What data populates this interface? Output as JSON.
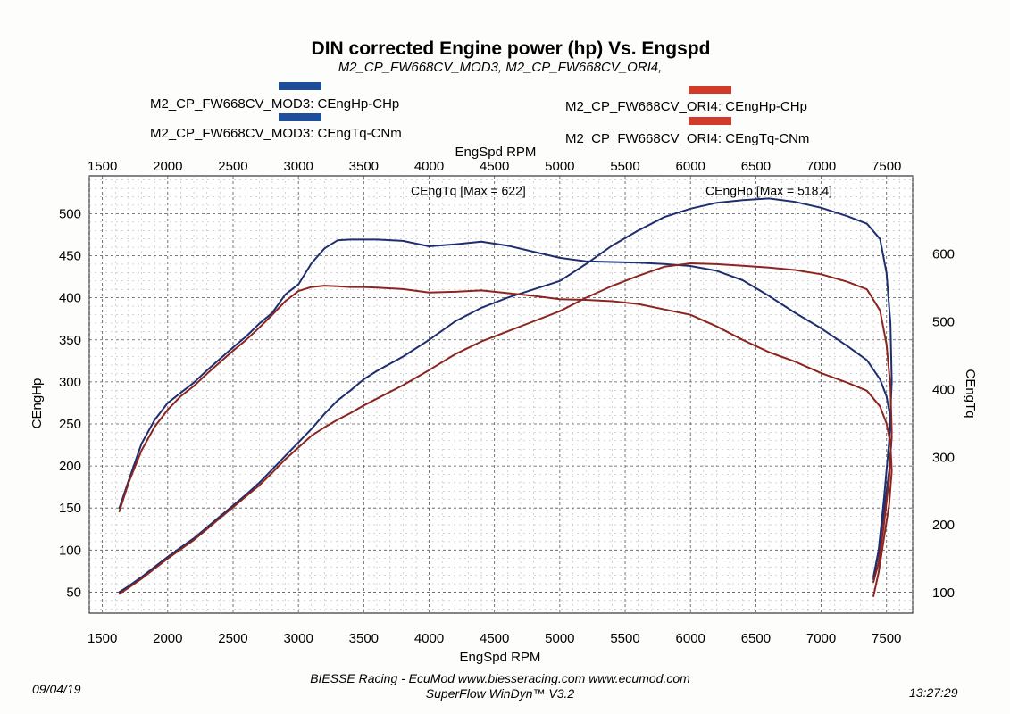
{
  "chart_data": {
    "type": "line",
    "title": "DIN corrected Engine power (hp) Vs. Engspd",
    "subtitle": "M2_CP_FW668CV_MOD3, M2_CP_FW668CV_ORI4,",
    "xlabel_top": "EngSpd RPM",
    "xlabel": "EngSpd RPM",
    "ylabel_left": "CEngHp",
    "ylabel_right": "CEngTq",
    "xlim": [
      1400,
      7700
    ],
    "ylim_left": [
      25,
      545
    ],
    "ylim_right": [
      70,
      715
    ],
    "xticks": [
      1500,
      2000,
      2500,
      3000,
      3500,
      4000,
      4500,
      5000,
      5500,
      6000,
      6500,
      7000,
      7500
    ],
    "yticks_left": [
      50,
      100,
      150,
      200,
      250,
      300,
      350,
      400,
      450,
      500
    ],
    "yticks_right": [
      100,
      200,
      300,
      400,
      500,
      600
    ],
    "grid": true,
    "annotations": [
      {
        "text": "CEngTq [Max = 622]",
        "x": 4300,
        "y": 522
      },
      {
        "text": "CEngHp [Max = 518.4]",
        "x": 6600,
        "y": 522
      }
    ],
    "legend": [
      {
        "label": "M2_CP_FW668CV_MOD3: CEngHp-CHp",
        "color": "#1f4e9a"
      },
      {
        "label": "M2_CP_FW668CV_MOD3: CEngTq-CNm",
        "color": "#1f4e9a"
      },
      {
        "label": "M2_CP_FW668CV_ORI4: CEngHp-CHp",
        "color": "#d23a2a"
      },
      {
        "label": "M2_CP_FW668CV_ORI4: CEngTq-CNm",
        "color": "#d23a2a"
      }
    ],
    "series": [
      {
        "name": "M2_CP_FW668CV_MOD3: CEngHp-CHp",
        "axis": "left",
        "color": "#1e2e6e",
        "x": [
          1630,
          1700,
          1800,
          1900,
          2000,
          2100,
          2200,
          2300,
          2400,
          2500,
          2600,
          2700,
          2800,
          2900,
          3000,
          3100,
          3200,
          3300,
          3400,
          3500,
          3600,
          3800,
          4000,
          4200,
          4400,
          4600,
          4800,
          5000,
          5200,
          5400,
          5600,
          5800,
          6000,
          6200,
          6400,
          6600,
          6800,
          7000,
          7200,
          7350,
          7450,
          7500,
          7530,
          7540,
          7520,
          7480,
          7440,
          7400
        ],
        "y": [
          50,
          57,
          68,
          80,
          92,
          103,
          114,
          127,
          140,
          153,
          166,
          180,
          196,
          212,
          228,
          244,
          262,
          278,
          290,
          303,
          313,
          330,
          350,
          372,
          388,
          400,
          410,
          420,
          440,
          462,
          480,
          496,
          506,
          513,
          516,
          518,
          514,
          507,
          497,
          488,
          470,
          430,
          370,
          300,
          230,
          160,
          100,
          68
        ]
      },
      {
        "name": "M2_CP_FW668CV_MOD3: CEngTq-CNm",
        "axis": "right",
        "color": "#1e2e6e",
        "x": [
          1630,
          1700,
          1800,
          1900,
          2000,
          2100,
          2200,
          2300,
          2400,
          2500,
          2600,
          2700,
          2800,
          2900,
          3000,
          3100,
          3200,
          3300,
          3400,
          3500,
          3600,
          3800,
          4000,
          4200,
          4400,
          4600,
          4800,
          5000,
          5200,
          5400,
          5600,
          5800,
          6000,
          6200,
          6400,
          6600,
          6800,
          7000,
          7200,
          7350,
          7450,
          7500,
          7530,
          7540,
          7520,
          7480,
          7440,
          7400
        ],
        "y": [
          225,
          265,
          320,
          355,
          380,
          395,
          410,
          428,
          445,
          462,
          478,
          497,
          513,
          540,
          555,
          586,
          608,
          620,
          621,
          621,
          621,
          619,
          611,
          614,
          618,
          612,
          603,
          594,
          589,
          588,
          587,
          585,
          582,
          575,
          561,
          538,
          513,
          490,
          464,
          443,
          415,
          390,
          358,
          330,
          280,
          220,
          160,
          120
        ]
      },
      {
        "name": "M2_CP_FW668CV_ORI4: CEngHp-CHp",
        "axis": "left",
        "color": "#8c2420",
        "x": [
          1630,
          1700,
          1800,
          1900,
          2000,
          2100,
          2200,
          2300,
          2400,
          2500,
          2600,
          2700,
          2800,
          2900,
          3000,
          3100,
          3200,
          3300,
          3400,
          3500,
          3600,
          3800,
          4000,
          4200,
          4400,
          4600,
          4800,
          5000,
          5200,
          5400,
          5600,
          5800,
          6000,
          6200,
          6400,
          6600,
          6800,
          7000,
          7200,
          7350,
          7450,
          7500,
          7530,
          7540,
          7520,
          7480,
          7440,
          7400
        ],
        "y": [
          48,
          55,
          66,
          78,
          90,
          101,
          112,
          125,
          138,
          151,
          164,
          177,
          192,
          208,
          222,
          236,
          246,
          255,
          263,
          272,
          280,
          296,
          314,
          333,
          348,
          360,
          372,
          384,
          400,
          414,
          426,
          437,
          441,
          440,
          438,
          436,
          433,
          428,
          419,
          410,
          385,
          345,
          295,
          240,
          185,
          130,
          85,
          62
        ]
      },
      {
        "name": "M2_CP_FW668CV_ORI4: CEngTq-CNm",
        "axis": "right",
        "color": "#8c2420",
        "x": [
          1630,
          1700,
          1800,
          1900,
          2000,
          2100,
          2200,
          2300,
          2400,
          2500,
          2600,
          2700,
          2800,
          2900,
          3000,
          3100,
          3200,
          3300,
          3400,
          3500,
          3600,
          3800,
          4000,
          4200,
          4400,
          4600,
          4800,
          5000,
          5200,
          5400,
          5600,
          5800,
          6000,
          6200,
          6400,
          6600,
          6800,
          7000,
          7200,
          7350,
          7450,
          7500,
          7530,
          7540,
          7520,
          7480,
          7440,
          7400
        ],
        "y": [
          220,
          262,
          310,
          345,
          370,
          390,
          405,
          423,
          440,
          457,
          473,
          491,
          510,
          530,
          545,
          551,
          553,
          552,
          551,
          551,
          550,
          548,
          543,
          544,
          546,
          542,
          538,
          533,
          532,
          530,
          526,
          518,
          510,
          493,
          473,
          455,
          441,
          424,
          410,
          398,
          375,
          350,
          320,
          280,
          230,
          180,
          130,
          95
        ]
      }
    ]
  },
  "footer": {
    "date": "09/04/19",
    "credit1": "BIESSE Racing - EcuMod www.biesseracing.com www.ecumod.com",
    "credit2": "SuperFlow WinDyn™ V3.2",
    "time": "13:27:29"
  }
}
